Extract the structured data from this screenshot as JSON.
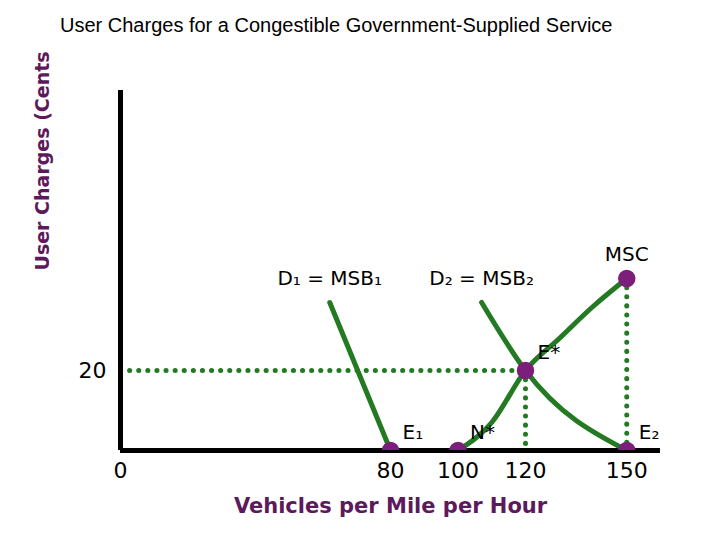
{
  "chart_data": {
    "type": "line",
    "title": "User Charges for a Congestible Government-Supplied Service",
    "x_label": "Vehicles per Mile per Hour",
    "y_label": "User Charges (Cents per Mile)",
    "xlim": [
      0,
      160
    ],
    "xticks": [
      0,
      80,
      100,
      120,
      150
    ],
    "ylim": [
      0,
      90
    ],
    "yticks": [
      20
    ],
    "series": [
      {
        "name": "D₁ = MSB₁",
        "color": "#237a23",
        "x": [
          62,
          80
        ],
        "values": [
          37,
          0
        ]
      },
      {
        "name": "D₂ = MSB₂",
        "color": "#237a23",
        "x": [
          107,
          120,
          150
        ],
        "values": [
          37,
          20,
          0
        ]
      },
      {
        "name": "MSC",
        "color": "#237a23",
        "x": [
          100,
          110,
          120,
          130,
          140,
          150
        ],
        "values": [
          0,
          7,
          20,
          28,
          36,
          43
        ]
      }
    ],
    "guides": [
      {
        "color": "#237a23",
        "line_style": "dotted",
        "x": [
          0,
          120
        ],
        "values": [
          20,
          20
        ]
      },
      {
        "color": "#237a23",
        "line_style": "dotted",
        "x": [
          120,
          120
        ],
        "values": [
          20,
          0
        ]
      },
      {
        "color": "#237a23",
        "line_style": "dotted",
        "x": [
          150,
          150
        ],
        "values": [
          43,
          0
        ]
      }
    ],
    "points": {
      "color": "#7b1f7b",
      "items": [
        {
          "label": "E₁",
          "x": 80,
          "y": 0
        },
        {
          "label": "N*",
          "x": 100,
          "y": 0
        },
        {
          "label": "E*",
          "x": 120,
          "y": 20
        },
        {
          "label": "E₂",
          "x": 150,
          "y": 0
        },
        {
          "x": 150,
          "y": 43
        }
      ]
    }
  }
}
